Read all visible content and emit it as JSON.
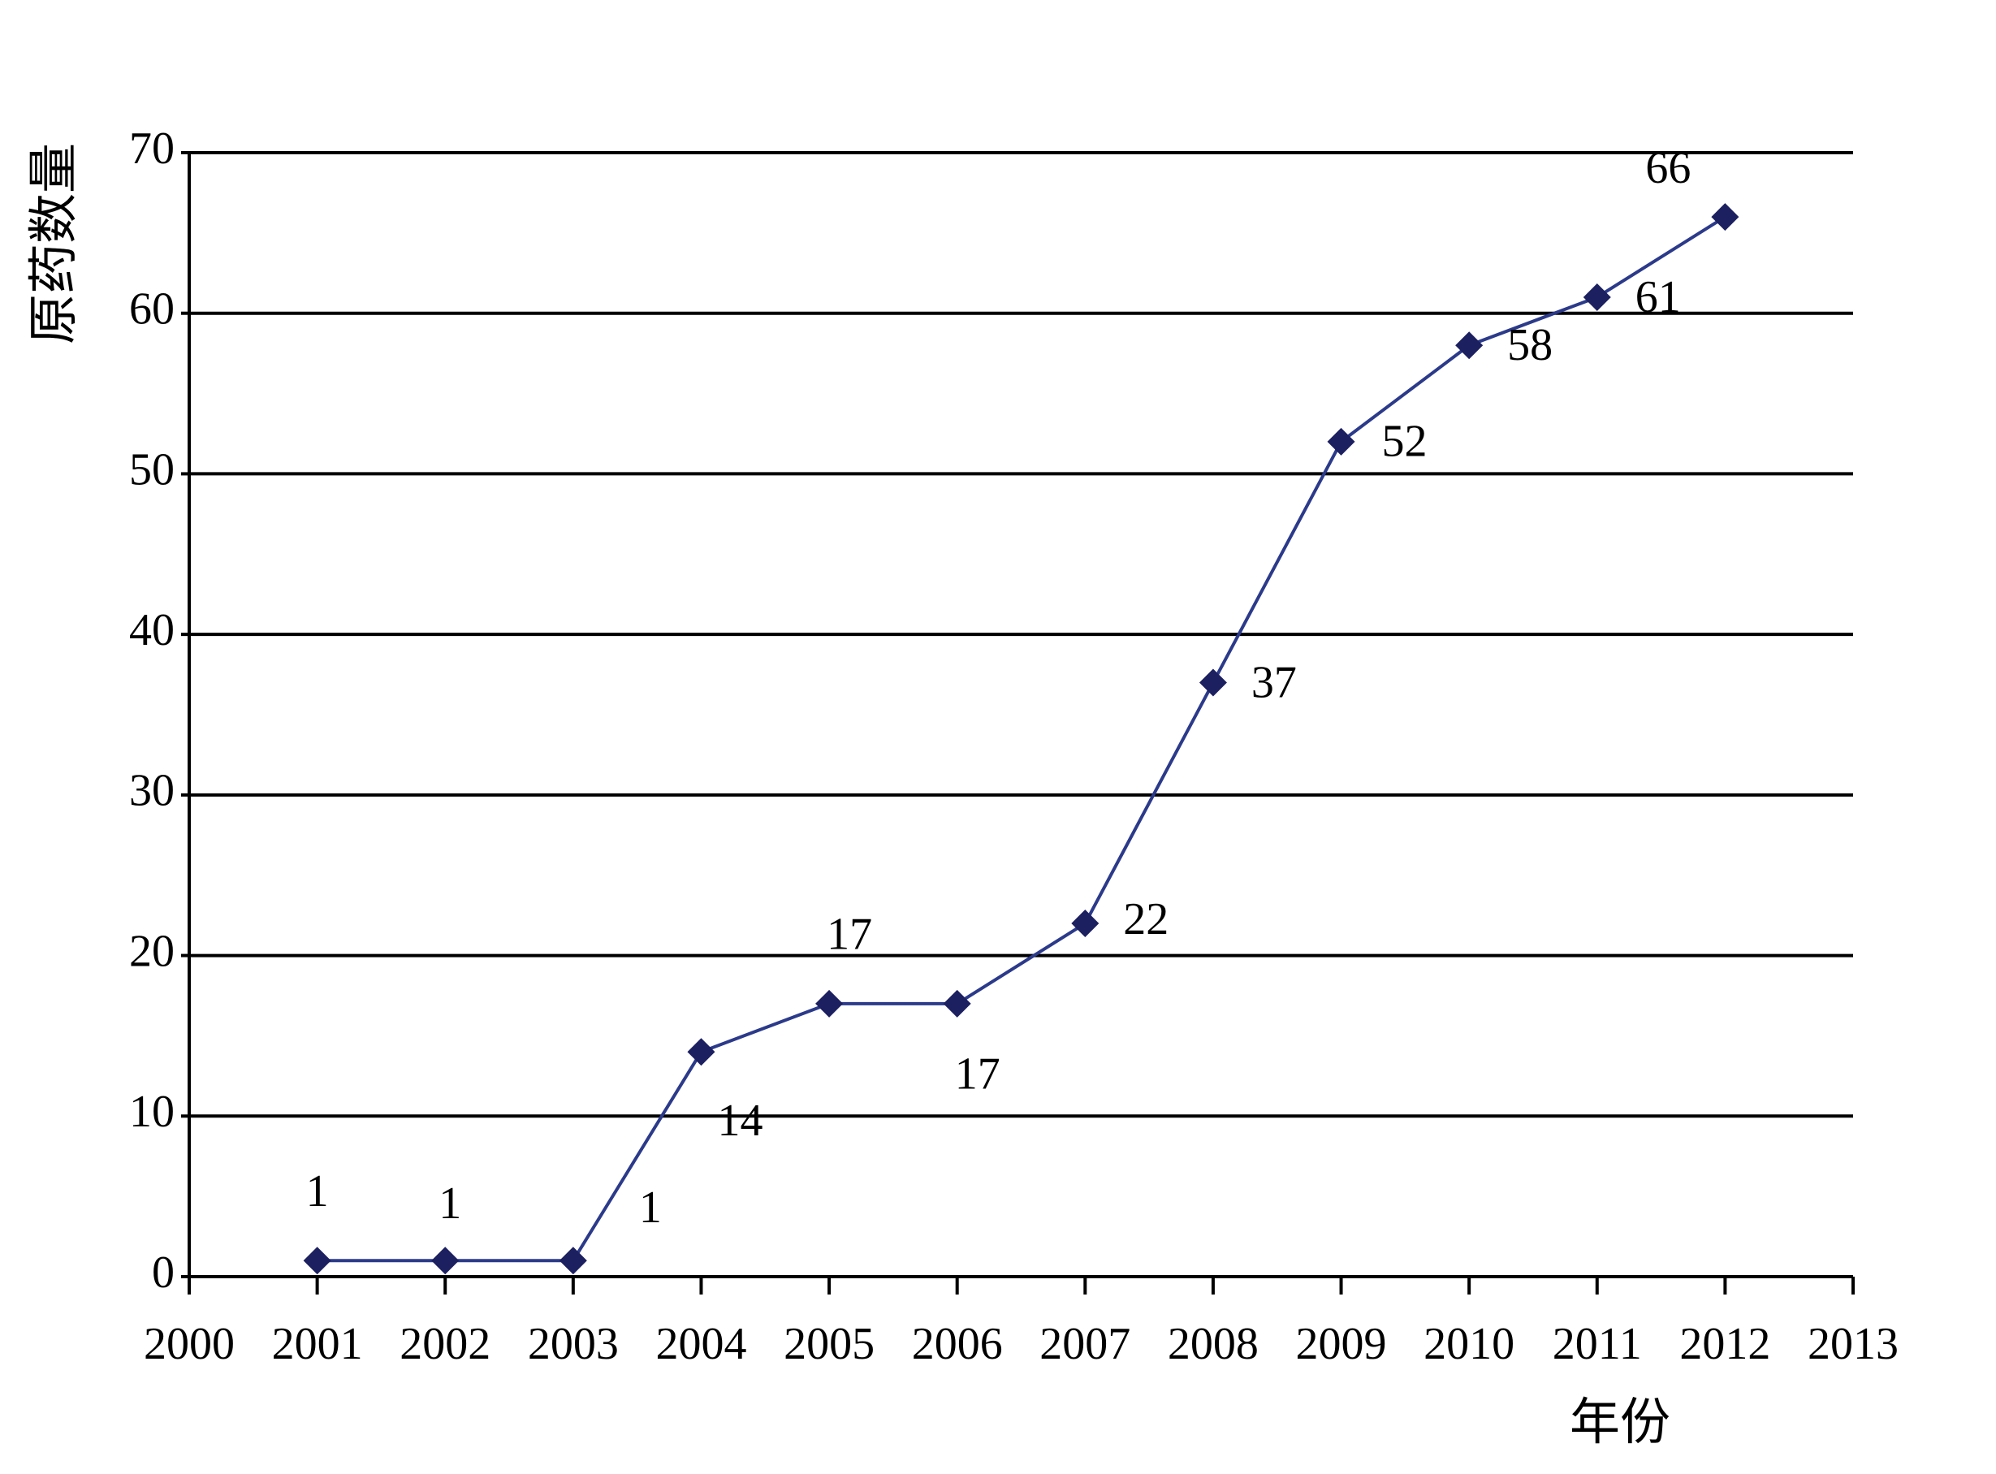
{
  "chart_data": {
    "type": "line",
    "xlabel": "年份",
    "ylabel": "原药数量",
    "x_ticks": [
      "2000",
      "2001",
      "2002",
      "2003",
      "2004",
      "2005",
      "2006",
      "2007",
      "2008",
      "2009",
      "2010",
      "2011",
      "2012",
      "2013"
    ],
    "y_ticks": [
      "0",
      "10",
      "20",
      "30",
      "40",
      "50",
      "60",
      "70"
    ],
    "xlim": [
      2000,
      2013
    ],
    "ylim": [
      0,
      70
    ],
    "grid": "horizontal",
    "marker": "diamond",
    "colors": {
      "line": "#2b3a8a",
      "marker": "#1c2060",
      "grid": "#000000"
    },
    "series": [
      {
        "x": [
          2001,
          2002,
          2003,
          2004,
          2005,
          2006,
          2007,
          2008,
          2009,
          2010,
          2011,
          2012
        ],
        "values": [
          1,
          1,
          1,
          14,
          17,
          17,
          22,
          37,
          52,
          58,
          61,
          66
        ],
        "labels": [
          "1",
          "1",
          "1",
          "14",
          "17",
          "17",
          "22",
          "37",
          "52",
          "58",
          "61",
          "66"
        ]
      }
    ]
  }
}
